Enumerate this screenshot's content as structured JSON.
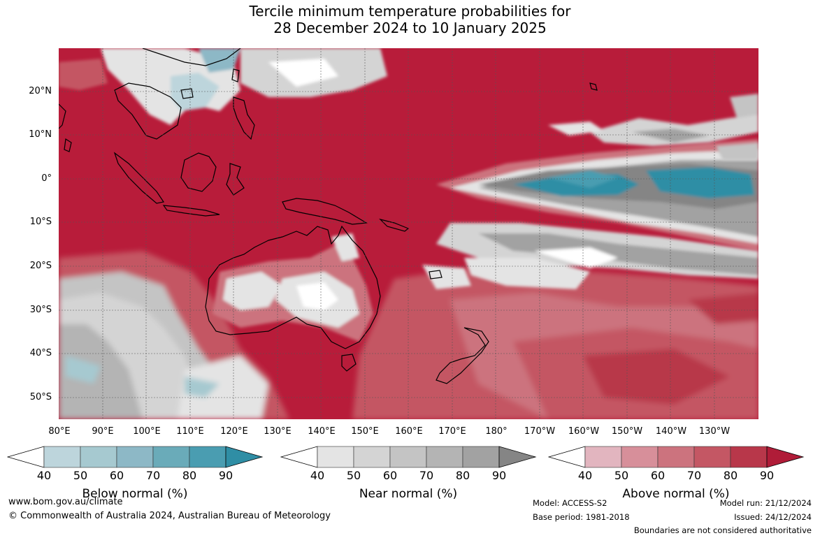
{
  "title_line1": "Tercile minimum temperature probabilities for",
  "title_line2": "28 December 2024 to 10 January 2025",
  "lat_labels": [
    "20°N",
    "10°N",
    "0°",
    "10°S",
    "20°S",
    "30°S",
    "40°S",
    "50°S"
  ],
  "lon_labels": [
    "80°E",
    "90°E",
    "100°E",
    "110°E",
    "120°E",
    "130°E",
    "140°E",
    "150°E",
    "160°E",
    "170°E",
    "180°",
    "170°W",
    "160°W",
    "150°W",
    "140°W",
    "130°W"
  ],
  "colorbars": [
    {
      "title": "Below normal (%)",
      "ticks": [
        "40",
        "50",
        "60",
        "70",
        "80",
        "90"
      ],
      "colors": [
        "#ffffff",
        "#bdd5dc",
        "#a6c9d0",
        "#8db8c6",
        "#6aabb9",
        "#4a9db1",
        "#2f8ea5"
      ]
    },
    {
      "title": "Near normal (%)",
      "ticks": [
        "40",
        "50",
        "60",
        "70",
        "80",
        "90"
      ],
      "colors": [
        "#ffffff",
        "#e4e4e4",
        "#d4d4d4",
        "#c4c4c4",
        "#b4b4b4",
        "#a2a2a2",
        "#858585"
      ]
    },
    {
      "title": "Above normal (%)",
      "ticks": [
        "40",
        "50",
        "60",
        "70",
        "80",
        "90"
      ],
      "colors": [
        "#ffffff",
        "#e2b5bf",
        "#d78f9a",
        "#cc737e",
        "#c45764",
        "#b8374a",
        "#b01c38"
      ]
    }
  ],
  "footer": {
    "website": "www.bom.gov.au/climate",
    "copyright": "© Commonwealth of Australia 2024, Australian Bureau of Meteorology",
    "model": "Model: ACCESS-S2",
    "base_period": "Base period: 1981-2018",
    "model_run": "Model run: 21/12/2024",
    "issued": "Issued: 24/12/2024",
    "boundaries": "Boundaries are not considered authoritative"
  },
  "map_colors": {
    "ocean_warm": "#b81c3a",
    "land_outline": "#000000",
    "grid": "#555555"
  }
}
